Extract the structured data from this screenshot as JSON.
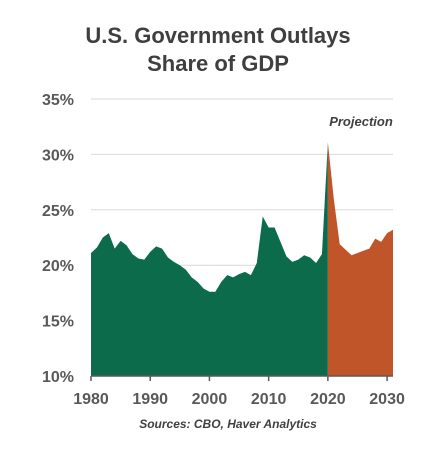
{
  "chart_data": {
    "type": "area",
    "title": "U.S. Government Outlays",
    "subtitle": "Share of GDP",
    "ylim": [
      10,
      35
    ],
    "xlim": [
      1980,
      2031
    ],
    "y_ticks": [
      "10%",
      "15%",
      "20%",
      "25%",
      "30%",
      "35%"
    ],
    "y_tick_values": [
      10,
      15,
      20,
      25,
      30,
      35
    ],
    "x_ticks": [
      "1980",
      "1990",
      "2000",
      "2010",
      "2020",
      "2030"
    ],
    "x_tick_values": [
      1980,
      1990,
      2000,
      2010,
      2020,
      2030
    ],
    "grid": true,
    "annotation": "Projection",
    "source": "Sources: CBO, Haver Analytics",
    "colors": {
      "historical": "#0b6b4a",
      "projection": "#c0552a",
      "grid": "#d9d9d9",
      "axis": "#595959"
    },
    "series": [
      {
        "x": [
          1980,
          1981,
          1982,
          1983,
          1984,
          1985,
          1986,
          1987,
          1988,
          1989,
          1990,
          1991,
          1992,
          1993,
          1994,
          1995,
          1996,
          1997,
          1998,
          1999,
          2000,
          2001,
          2002,
          2003,
          2004,
          2005,
          2006,
          2007,
          2008,
          2009,
          2010,
          2011,
          2012,
          2013,
          2014,
          2015,
          2016,
          2017,
          2018,
          2019,
          2020
        ],
        "values": [
          21.1,
          21.6,
          22.5,
          22.9,
          21.5,
          22.2,
          21.8,
          21.0,
          20.6,
          20.5,
          21.2,
          21.7,
          21.5,
          20.7,
          20.3,
          20.0,
          19.6,
          18.9,
          18.5,
          17.9,
          17.6,
          17.6,
          18.5,
          19.1,
          18.9,
          19.2,
          19.4,
          19.1,
          20.2,
          24.4,
          23.4,
          23.4,
          22.1,
          20.8,
          20.3,
          20.5,
          20.9,
          20.7,
          20.2,
          21.0,
          31.1
        ]
      },
      {
        "x": [
          2020,
          2021,
          2022,
          2023,
          2024,
          2025,
          2026,
          2027,
          2028,
          2029,
          2030,
          2031
        ],
        "values": [
          31.1,
          26.0,
          21.9,
          21.4,
          20.9,
          21.1,
          21.3,
          21.5,
          22.4,
          22.1,
          22.9,
          23.2
        ]
      }
    ]
  }
}
